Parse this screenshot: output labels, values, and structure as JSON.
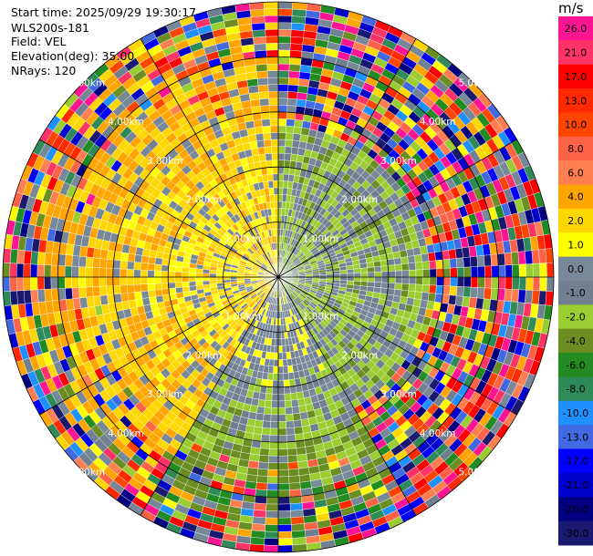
{
  "header": {
    "start_time": "Start time: 2025/09/29 19:30:17",
    "instrument": "WLS200s-181",
    "field": "Field: VEL",
    "elevation": "Elevation(deg): 35.00",
    "nrays": "NRays: 120"
  },
  "chart_data": {
    "type": "heatmap",
    "projection": "polar-ppi",
    "field": "VEL",
    "elevation_deg": 35.0,
    "nrays": 120,
    "range_rings_km": [
      1.0,
      2.0,
      3.0,
      4.0,
      5.0
    ],
    "range_labels": [
      "1.00km",
      "2.00km",
      "3.00km",
      "4.00km",
      "5.00km"
    ],
    "max_range_km": 5.0,
    "spokes_deg": [
      0,
      30,
      60,
      90,
      120,
      150,
      180,
      210,
      240,
      270,
      300,
      330
    ],
    "dominant_sector_values": [
      {
        "azimuth_from": 0,
        "azimuth_to": 150,
        "near_value": -2.0,
        "far_value": "noise"
      },
      {
        "azimuth_from": 150,
        "azimuth_to": 210,
        "near_value": 0.0,
        "far_value": -6.0
      },
      {
        "azimuth_from": 210,
        "azimuth_to": 360,
        "near_value": 2.0,
        "far_value": 4.0
      }
    ],
    "colorbar": {
      "unit": "m/s",
      "ticks": [
        "26.0",
        "21.0",
        "17.0",
        "13.0",
        "10.0",
        "8.0",
        "6.0",
        "4.0",
        "2.0",
        "1.0",
        "0.0",
        "-1.0",
        "-2.0",
        "-4.0",
        "-6.0",
        "-8.0",
        "-10.0",
        "-13.0",
        "-17.0",
        "-21.0",
        "-26.0",
        "-30.0"
      ],
      "colors": [
        "#ff1493",
        "#ff3366",
        "#ff0000",
        "#ff2a00",
        "#ff4500",
        "#ff6347",
        "#ff7f50",
        "#ffa500",
        "#ffd700",
        "#ffff00",
        "#778899",
        "#708090",
        "#9acd32",
        "#6b8e23",
        "#228b22",
        "#2e8b57",
        "#1e90ff",
        "#4169e1",
        "#0000ff",
        "#0000cd",
        "#000080",
        "#191970"
      ]
    }
  }
}
